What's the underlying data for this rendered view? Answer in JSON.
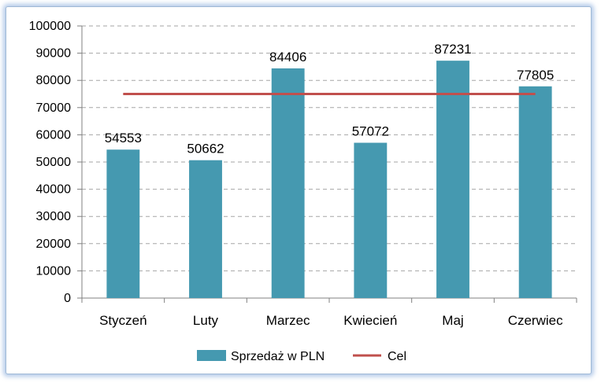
{
  "chart_data": {
    "type": "bar",
    "categories": [
      "Styczeń",
      "Luty",
      "Marzec",
      "Kwiecień",
      "Maj",
      "Czerwiec"
    ],
    "series": [
      {
        "name": "Sprzedaż w PLN",
        "type": "bar",
        "color": "#4599b0",
        "values": [
          54553,
          50662,
          84406,
          57072,
          87231,
          77805
        ]
      },
      {
        "name": "Cel",
        "type": "line",
        "color": "#c0504d",
        "values": [
          75000,
          75000,
          75000,
          75000,
          75000,
          75000
        ]
      }
    ],
    "ylim": [
      0,
      100000
    ],
    "yticks": [
      "0",
      "10000",
      "20000",
      "30000",
      "40000",
      "50000",
      "60000",
      "70000",
      "80000",
      "90000",
      "100000"
    ],
    "data_labels": [
      "54553",
      "50662",
      "84406",
      "57072",
      "87231",
      "77805"
    ],
    "grid": true,
    "legend_position": "bottom",
    "title": "",
    "xlabel": "",
    "ylabel": ""
  }
}
